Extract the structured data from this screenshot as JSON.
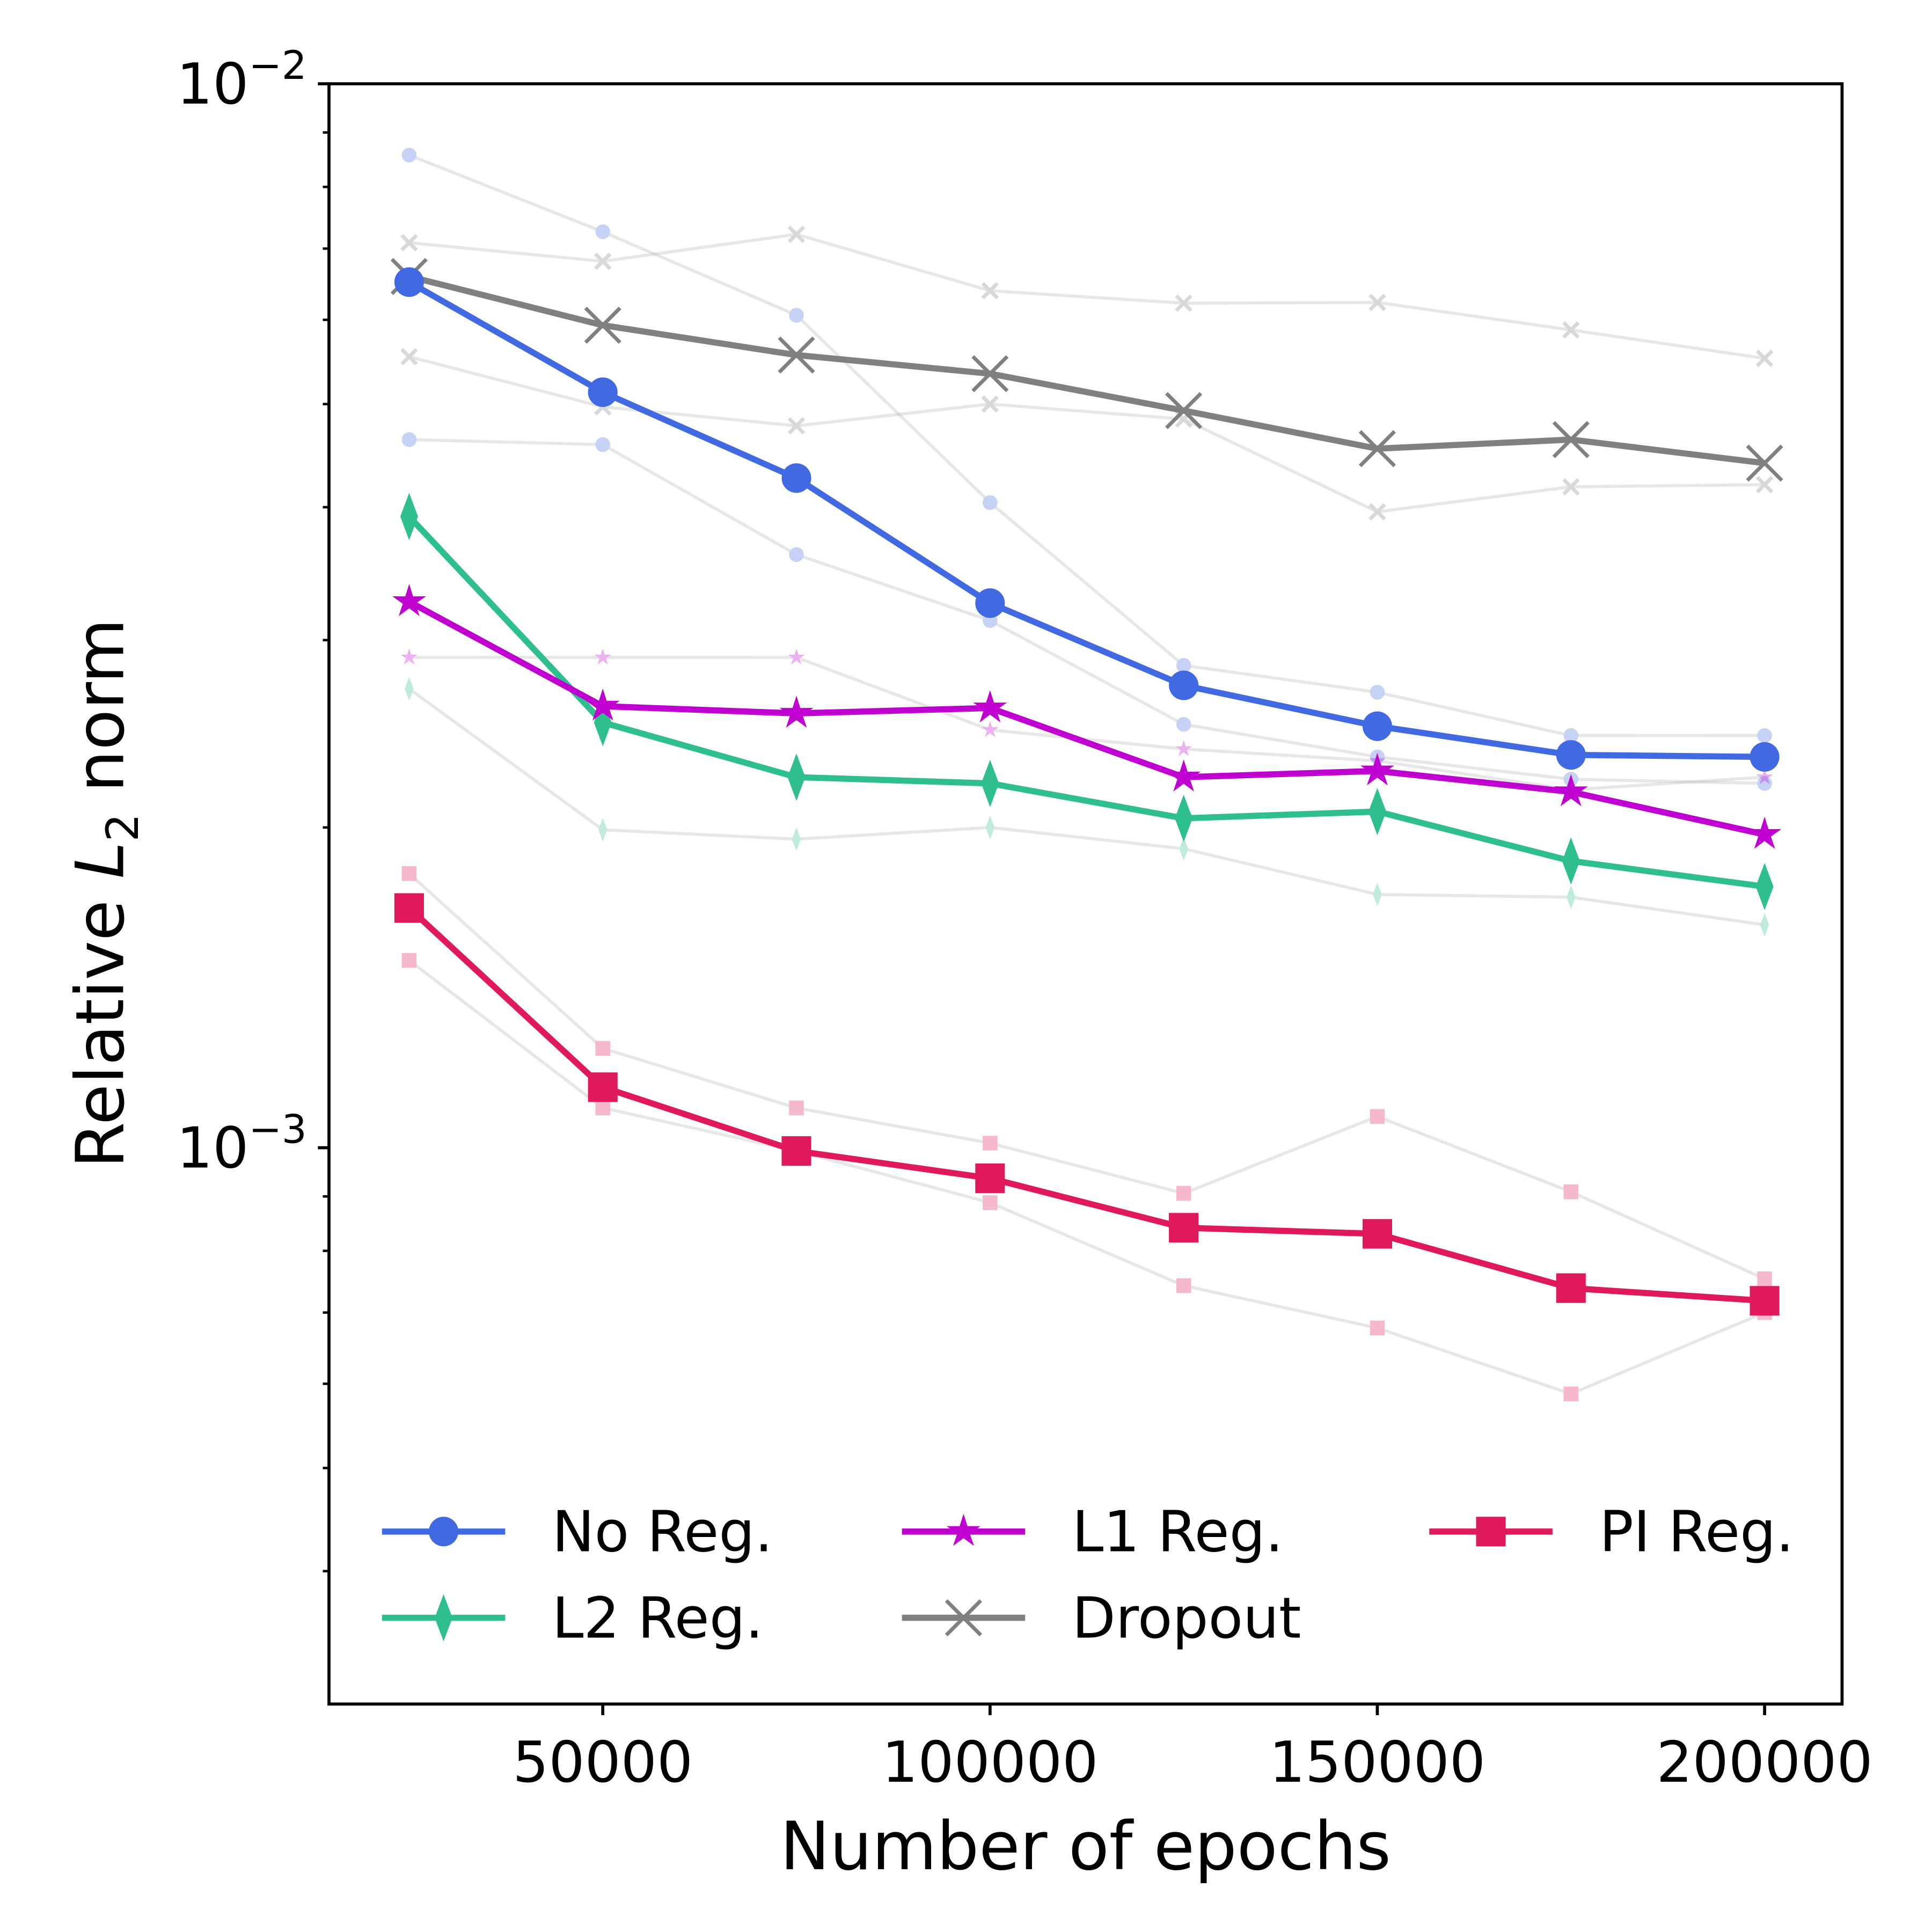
{
  "chart_data": {
    "type": "line",
    "title": "",
    "xlabel": "Number of epochs",
    "ylabel_parts": {
      "pre": "Relative ",
      "italic": "L",
      "sub": "2",
      "post": " norm"
    },
    "x": [
      25000,
      50000,
      75000,
      100000,
      125000,
      150000,
      175000,
      200000
    ],
    "xlim": [
      14650,
      210000
    ],
    "ylim": [
      0.0003,
      0.01
    ],
    "yscale": "log",
    "grid": false,
    "legend_placement": "lower-center",
    "x_ticks": [
      50000,
      100000,
      150000,
      200000
    ],
    "x_tick_labels": [
      "50000",
      "100000",
      "150000",
      "200000"
    ],
    "y_ticks": [
      {
        "value": 0.01,
        "base": "10",
        "exp": "−2"
      },
      {
        "value": 0.001,
        "base": "10",
        "exp": "−3"
      }
    ],
    "series": [
      {
        "name": "No Reg.",
        "color": "#4169e1",
        "marker": "circle",
        "values": [
          0.00651,
          0.00513,
          0.00426,
          0.00325,
          0.00272,
          0.00249,
          0.00234,
          0.00233
        ]
      },
      {
        "name": "L1 Reg.",
        "color": "#c000d0",
        "marker": "star",
        "values": [
          0.00326,
          0.0026,
          0.00256,
          0.00259,
          0.00223,
          0.00226,
          0.00216,
          0.00197
        ]
      },
      {
        "name": "PI Reg.",
        "color": "#e0195a",
        "marker": "square",
        "values": [
          0.00168,
          0.00114,
          0.000993,
          0.000936,
          0.000841,
          0.00083,
          0.000738,
          0.000718
        ]
      },
      {
        "name": "L2 Reg.",
        "color": "#2fbf8f",
        "marker": "diamond",
        "values": [
          0.00392,
          0.00251,
          0.00223,
          0.0022,
          0.00204,
          0.00207,
          0.00186,
          0.00176
        ]
      },
      {
        "name": "Dropout",
        "color": "#808080",
        "marker": "x",
        "values": [
          0.00659,
          0.00593,
          0.00556,
          0.00534,
          0.00493,
          0.00454,
          0.00463,
          0.0044
        ]
      }
    ],
    "individual_runs": [
      {
        "color": "#4169e1",
        "marker": "circle",
        "values": [
          0.00857,
          0.00726,
          0.00606,
          0.00404,
          0.00284,
          0.00268,
          0.00244,
          0.00244
        ]
      },
      {
        "color": "#4169e1",
        "marker": "circle",
        "values": [
          0.00463,
          0.00458,
          0.00361,
          0.00313,
          0.0025,
          0.00233,
          0.00222,
          0.0022
        ]
      },
      {
        "color": "#808080",
        "marker": "x",
        "values": [
          0.00709,
          0.00681,
          0.00722,
          0.00639,
          0.00622,
          0.00623,
          0.00587,
          0.00552
        ]
      },
      {
        "color": "#808080",
        "marker": "x",
        "values": [
          0.00554,
          0.00497,
          0.00477,
          0.005,
          0.00484,
          0.00396,
          0.00418,
          0.0042
        ]
      },
      {
        "color": "#2fbf8f",
        "marker": "diamond",
        "values": [
          0.0027,
          0.00199,
          0.00195,
          0.002,
          0.00191,
          0.00173,
          0.00172,
          0.00162
        ]
      },
      {
        "color": "#c000d0",
        "marker": "star",
        "values": [
          0.00289,
          0.00289,
          0.00289,
          0.00247,
          0.00237,
          0.00231,
          0.00217,
          0.00223
        ]
      },
      {
        "color": "#e0195a",
        "marker": "square",
        "values": [
          0.00181,
          0.00124,
          0.00109,
          0.00101,
          0.000906,
          0.00107,
          0.000909,
          0.000753
        ]
      },
      {
        "color": "#e0195a",
        "marker": "square",
        "values": [
          0.0015,
          0.00109,
          0.000993,
          0.000888,
          0.000742,
          0.000677,
          0.000587,
          0.0007
        ]
      }
    ]
  }
}
